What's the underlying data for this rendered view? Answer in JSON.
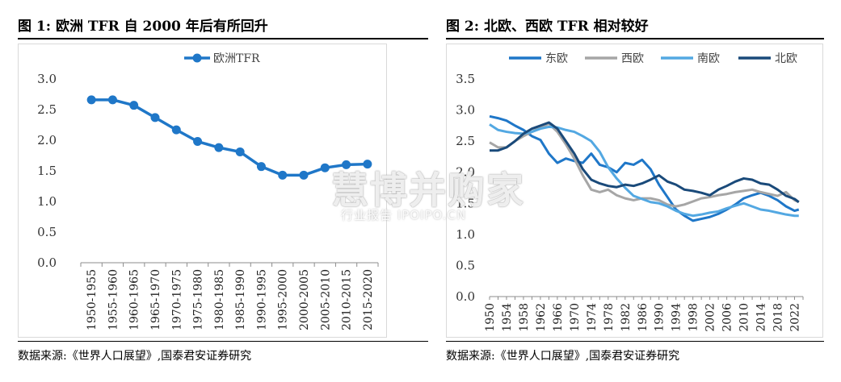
{
  "figure1": {
    "title": "图 1:  欧洲 TFR 自 2000 年后有所回升",
    "source": "数据来源:《世界人口展望》,国泰君安证券研究"
  },
  "figure2": {
    "title": "图 2:  北欧、西欧 TFR 相对较好",
    "source": "数据来源:《世界人口展望》,国泰君安证券研究"
  },
  "watermark": {
    "main": "慧博并购家",
    "sub": "行业报告 IPOIPO.CN"
  },
  "chart_data": [
    {
      "type": "line",
      "title": "",
      "xlabel": "",
      "ylabel": "",
      "ylim": [
        0,
        3.0
      ],
      "yticks": [
        "0.0",
        "0.5",
        "1.0",
        "1.5",
        "2.0",
        "2.5",
        "3.0"
      ],
      "categories": [
        "1950-1955",
        "1955-1960",
        "1960-1965",
        "1965-1970",
        "1970-1975",
        "1975-1980",
        "1980-1985",
        "1985-1990",
        "1990-1995",
        "1995-2000",
        "2000-2005",
        "2005-2010",
        "2010-2015",
        "2015-2020"
      ],
      "series": [
        {
          "name": "欧洲TFR",
          "color": "#1f77c8",
          "values": [
            2.66,
            2.66,
            2.57,
            2.37,
            2.17,
            1.98,
            1.88,
            1.81,
            1.57,
            1.43,
            1.43,
            1.55,
            1.6,
            1.61
          ]
        }
      ],
      "legend": "top-center",
      "grid": false
    },
    {
      "type": "line",
      "title": "",
      "xlabel": "",
      "ylabel": "",
      "ylim": [
        0,
        3.5
      ],
      "yticks": [
        "0.0",
        "0.5",
        "1.0",
        "1.5",
        "2.0",
        "2.5",
        "3.0",
        "3.5"
      ],
      "xticks": [
        "1950",
        "1954",
        "1958",
        "1962",
        "1966",
        "1970",
        "1974",
        "1978",
        "1982",
        "1986",
        "1990",
        "1994",
        "1998",
        "2002",
        "2006",
        "2010",
        "2014",
        "2018",
        "2022"
      ],
      "x_years": [
        1950,
        1952,
        1954,
        1956,
        1958,
        1960,
        1962,
        1964,
        1966,
        1968,
        1970,
        1972,
        1974,
        1976,
        1978,
        1980,
        1982,
        1984,
        1986,
        1988,
        1990,
        1992,
        1994,
        1996,
        1998,
        2000,
        2002,
        2004,
        2006,
        2008,
        2010,
        2012,
        2014,
        2016,
        2018,
        2020,
        2022,
        2023
      ],
      "series": [
        {
          "name": "东欧",
          "color": "#1f77c8",
          "values": [
            2.9,
            2.87,
            2.83,
            2.75,
            2.68,
            2.58,
            2.52,
            2.3,
            2.15,
            2.22,
            2.18,
            2.15,
            2.3,
            2.12,
            2.08,
            2.0,
            2.15,
            2.12,
            2.2,
            2.05,
            1.8,
            1.6,
            1.4,
            1.3,
            1.22,
            1.25,
            1.28,
            1.33,
            1.4,
            1.48,
            1.58,
            1.63,
            1.67,
            1.62,
            1.55,
            1.45,
            1.38,
            1.4
          ]
        },
        {
          "name": "西欧",
          "color": "#a6a6a6",
          "values": [
            2.48,
            2.4,
            2.4,
            2.5,
            2.58,
            2.65,
            2.72,
            2.78,
            2.65,
            2.45,
            2.22,
            1.95,
            1.72,
            1.68,
            1.72,
            1.63,
            1.58,
            1.55,
            1.58,
            1.58,
            1.55,
            1.48,
            1.45,
            1.48,
            1.53,
            1.58,
            1.6,
            1.63,
            1.65,
            1.68,
            1.7,
            1.72,
            1.68,
            1.65,
            1.62,
            1.68,
            1.55,
            1.52
          ]
        },
        {
          "name": "南欧",
          "color": "#53a8e2",
          "values": [
            2.77,
            2.68,
            2.65,
            2.63,
            2.62,
            2.65,
            2.7,
            2.73,
            2.72,
            2.68,
            2.65,
            2.58,
            2.5,
            2.33,
            2.08,
            1.9,
            1.75,
            1.62,
            1.57,
            1.52,
            1.5,
            1.45,
            1.38,
            1.33,
            1.3,
            1.32,
            1.35,
            1.37,
            1.42,
            1.46,
            1.5,
            1.45,
            1.4,
            1.38,
            1.35,
            1.32,
            1.3,
            1.3
          ]
        },
        {
          "name": "北欧",
          "color": "#1a4a7a",
          "values": [
            2.35,
            2.35,
            2.4,
            2.5,
            2.62,
            2.7,
            2.75,
            2.8,
            2.7,
            2.5,
            2.3,
            2.05,
            1.88,
            1.82,
            1.78,
            1.76,
            1.8,
            1.78,
            1.82,
            1.88,
            1.95,
            1.85,
            1.8,
            1.72,
            1.7,
            1.67,
            1.63,
            1.72,
            1.78,
            1.85,
            1.9,
            1.88,
            1.82,
            1.8,
            1.72,
            1.62,
            1.57,
            1.52
          ]
        }
      ],
      "legend": "top",
      "grid": false
    }
  ]
}
